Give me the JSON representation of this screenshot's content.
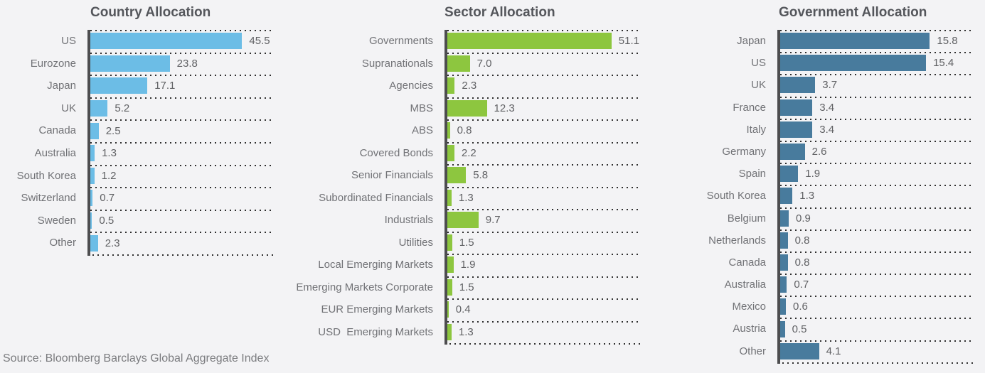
{
  "footer": {
    "source": "Source: Bloomberg Barclays Global Aggregate Index"
  },
  "colors": {
    "background": "#f3f3f5",
    "axis_line": "#4d4d4f",
    "dotted_line": "#2e2e2e",
    "title_text": "#54565b",
    "label_text": "#717276",
    "value_text": "#606164",
    "country_bar": "#6cbde6",
    "sector_bar": "#8dc63f",
    "government_bar": "#487b9d"
  },
  "chart_data": [
    {
      "type": "bar",
      "orientation": "horizontal",
      "title": "Country Allocation",
      "bar_color": "#6cbde6",
      "xlim": [
        0,
        55
      ],
      "grid": "dotted-row-separators",
      "legend": "none",
      "value_labels": "end-of-bar",
      "categories": [
        "US",
        "Eurozone",
        "Japan",
        "UK",
        "Canada",
        "Australia",
        "South Korea",
        "Switzerland",
        "Sweden",
        "Other"
      ],
      "values": [
        45.5,
        23.8,
        17.1,
        5.2,
        2.5,
        1.3,
        1.2,
        0.7,
        0.5,
        2.3
      ]
    },
    {
      "type": "bar",
      "orientation": "horizontal",
      "title": "Sector Allocation",
      "bar_color": "#8dc63f",
      "xlim": [
        0,
        60
      ],
      "grid": "dotted-row-separators",
      "legend": "none",
      "value_labels": "end-of-bar",
      "categories": [
        "Governments",
        "Supranationals",
        "Agencies",
        "MBS",
        "ABS",
        "Covered Bonds",
        "Senior Financials",
        "Subordinated Financials",
        "Industrials",
        "Utilities",
        "Local Emerging Markets",
        "Emerging Markets Corporate",
        "EUR Emerging Markets",
        "USD  Emerging Markets"
      ],
      "values": [
        51.1,
        7.0,
        2.3,
        12.3,
        0.8,
        2.2,
        5.8,
        1.3,
        9.7,
        1.5,
        1.9,
        1.5,
        0.4,
        1.3
      ]
    },
    {
      "type": "bar",
      "orientation": "horizontal",
      "title": "Government Allocation",
      "bar_color": "#487b9d",
      "xlim": [
        0,
        20.5
      ],
      "grid": "dotted-row-separators",
      "legend": "none",
      "value_labels": "end-of-bar",
      "categories": [
        "Japan",
        "US",
        "UK",
        "France",
        "Italy",
        "Germany",
        "Spain",
        "South Korea",
        "Belgium",
        "Netherlands",
        "Canada",
        "Australia",
        "Mexico",
        "Austria",
        "Other"
      ],
      "values": [
        15.8,
        15.4,
        3.7,
        3.4,
        3.4,
        2.6,
        1.9,
        1.3,
        0.9,
        0.8,
        0.8,
        0.7,
        0.6,
        0.5,
        4.1
      ]
    }
  ]
}
